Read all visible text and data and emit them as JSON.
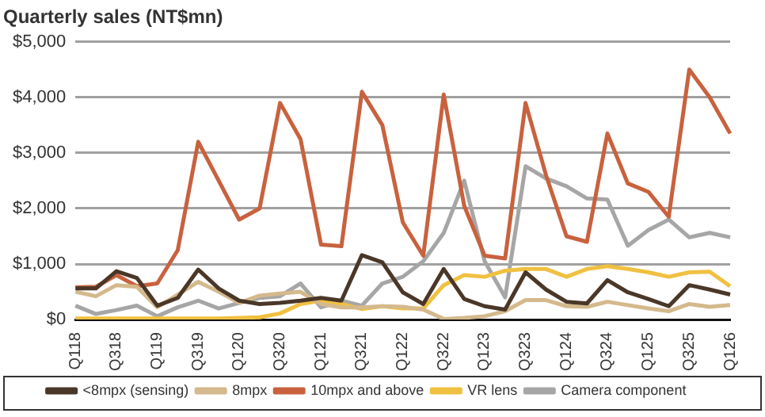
{
  "chart_data": {
    "type": "line",
    "title": "Quarterly sales (NT$mn)",
    "categories": [
      "Q118",
      null,
      "Q318",
      null,
      "Q119",
      null,
      "Q319",
      null,
      "Q120",
      null,
      "Q320",
      null,
      "Q121",
      null,
      "Q321",
      null,
      "Q122",
      null,
      "Q322",
      null,
      "Q123",
      null,
      "Q323",
      null,
      "Q124",
      null,
      "Q324",
      null,
      "Q125",
      null,
      "Q325",
      null,
      "Q126"
    ],
    "series": [
      {
        "name": "<8mpx (sensing)",
        "color": "#4a3728",
        "values": [
          560,
          560,
          870,
          750,
          250,
          390,
          900,
          560,
          340,
          280,
          300,
          340,
          390,
          340,
          1160,
          1030,
          490,
          280,
          910,
          370,
          240,
          180,
          850,
          540,
          320,
          290,
          710,
          490,
          370,
          240,
          620,
          540,
          450
        ]
      },
      {
        "name": "8mpx",
        "color": "#d4b98c",
        "values": [
          500,
          420,
          620,
          590,
          220,
          450,
          680,
          500,
          300,
          430,
          470,
          500,
          280,
          220,
          220,
          240,
          230,
          180,
          10,
          30,
          60,
          150,
          350,
          350,
          240,
          230,
          320,
          260,
          200,
          150,
          280,
          230,
          260
        ]
      },
      {
        "name": "10mpx and above",
        "color": "#c8623e",
        "values": [
          580,
          590,
          800,
          600,
          650,
          1250,
          3200,
          2500,
          1800,
          2000,
          3900,
          3250,
          1350,
          1320,
          4100,
          3500,
          1750,
          1150,
          4050,
          2050,
          1150,
          1100,
          3900,
          2600,
          1500,
          1400,
          3350,
          2450,
          2300,
          1850,
          4500,
          4000,
          3350
        ]
      },
      {
        "name": "VR lens",
        "color": "#f0c040",
        "values": [
          20,
          20,
          20,
          20,
          20,
          20,
          20,
          20,
          30,
          40,
          110,
          280,
          340,
          280,
          190,
          240,
          200,
          200,
          620,
          800,
          770,
          880,
          910,
          910,
          770,
          910,
          960,
          910,
          850,
          770,
          850,
          860,
          600
        ]
      },
      {
        "name": "Camera component",
        "color": "#a6a6a6",
        "values": [
          250,
          100,
          170,
          250,
          60,
          220,
          340,
          200,
          300,
          390,
          420,
          650,
          220,
          340,
          250,
          650,
          770,
          1050,
          1560,
          2500,
          1050,
          400,
          2760,
          2540,
          2400,
          2180,
          2160,
          1330,
          1610,
          1800,
          1480,
          1560,
          1480
        ]
      }
    ],
    "ylim": [
      0,
      5000
    ],
    "yticks": [
      {
        "value": 0,
        "label": "$0"
      },
      {
        "value": 1000,
        "label": "$1,000"
      },
      {
        "value": 2000,
        "label": "$2,000"
      },
      {
        "value": 3000,
        "label": "$3,000"
      },
      {
        "value": 4000,
        "label": "$4,000"
      },
      {
        "value": 5000,
        "label": "$5,000"
      }
    ],
    "grid": "y",
    "legend": "bottom",
    "marker": "none",
    "line_style": "solid"
  }
}
